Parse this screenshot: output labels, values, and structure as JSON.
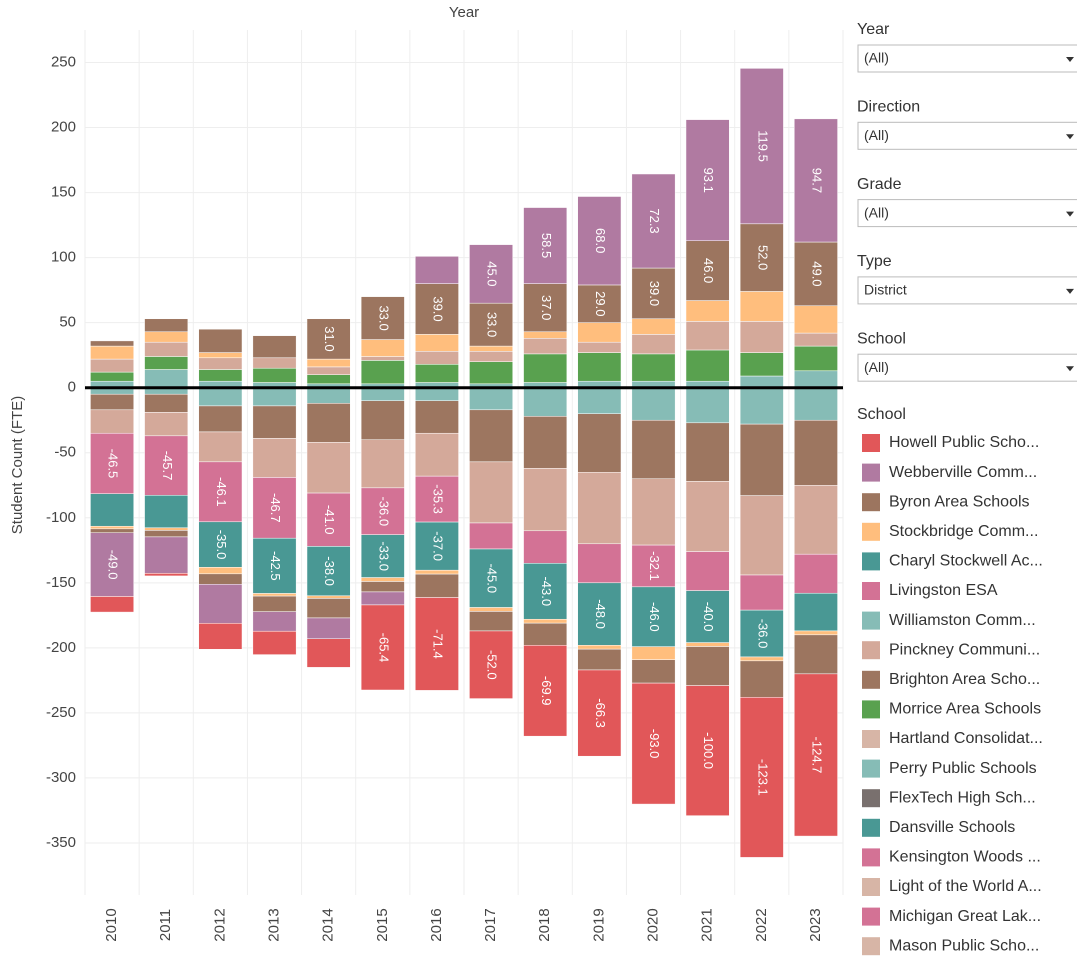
{
  "chart_data": {
    "type": "stacked_bar",
    "x_label": "Year",
    "y_label": "Student Count (FTE)",
    "categories": [
      "2010",
      "2011",
      "2012",
      "2013",
      "2014",
      "2015",
      "2016",
      "2017",
      "2018",
      "2019",
      "2020",
      "2021",
      "2022",
      "2023"
    ],
    "ylim": [
      -390,
      275
    ],
    "yticks": [
      -350,
      -300,
      -250,
      -200,
      -150,
      -100,
      -50,
      0,
      50,
      100,
      150,
      200,
      250
    ],
    "grid": true,
    "legend_title": "School",
    "series": [
      {
        "name": "Howell Public Scho...",
        "color": "#e15759",
        "values_out": [
          -12,
          -2,
          -20,
          -18,
          -22,
          -65.4,
          -71.4,
          -52,
          -69.9,
          -66.3,
          -93,
          -100,
          -123.1,
          -124.7
        ],
        "value_labels_out": [
          null,
          null,
          null,
          null,
          null,
          "-65.4",
          "-71.4",
          "-52.0",
          "-69.9",
          "-66.3",
          "-93.0",
          "-100.0",
          "-123.1",
          "-124.7"
        ]
      },
      {
        "name": "Webberville Comm...",
        "color": "#b07aa1",
        "values": [
          null,
          null,
          null,
          null,
          null,
          null,
          21,
          45,
          58.5,
          68,
          72.3,
          93.1,
          119.5,
          94.7
        ],
        "value_labels": [
          null,
          null,
          null,
          null,
          null,
          null,
          null,
          "45.0",
          "58.5",
          "68.0",
          "72.3",
          "93.1",
          "119.5",
          "94.7"
        ],
        "values_out": [
          -49,
          -28,
          -30,
          -15,
          -16,
          -10,
          null,
          null,
          null,
          null,
          null,
          null,
          null,
          null
        ],
        "value_labels_out": [
          "-49.0",
          null,
          null,
          null,
          null,
          null,
          null,
          null,
          null,
          null,
          null,
          null,
          null,
          null
        ]
      },
      {
        "name": "Byron Area Schools",
        "color": "#9c755f",
        "values": [
          4,
          10,
          18,
          17,
          31,
          33,
          39,
          33,
          37,
          29,
          39,
          46,
          52,
          49
        ],
        "value_labels": [
          null,
          null,
          null,
          null,
          "31.0",
          "33.0",
          "39.0",
          "33.0",
          "37.0",
          "29.0",
          "39.0",
          "46.0",
          "52.0",
          "49.0"
        ],
        "values_out": [
          -3,
          -5,
          -8,
          -12,
          -15,
          -8,
          -18,
          -15,
          -17,
          -16,
          -18,
          -30,
          -28,
          -30
        ]
      },
      {
        "name": "Stockbridge Comm...",
        "color": "#ffbe7d",
        "values": [
          10,
          8,
          4,
          null,
          6,
          13,
          13,
          4,
          5,
          15,
          12,
          16,
          23,
          21
        ],
        "values_out": [
          -2,
          -2,
          -5,
          -2,
          -2,
          -3,
          -3,
          -3,
          -3,
          -3,
          -10,
          -3,
          -3,
          -3
        ]
      },
      {
        "name": "Charyl Stockwell Ac...",
        "color": "#499894",
        "values_out": [
          -25,
          -25,
          -35,
          -42.5,
          -38,
          -33,
          -37,
          -45,
          -43,
          -48,
          -46,
          -40,
          -36,
          -29
        ],
        "value_labels_out": [
          null,
          null,
          "-35.0",
          "-42.5",
          "-38.0",
          "-33.0",
          "-37.0",
          "-45.0",
          "-43.0",
          "-48.0",
          "-46.0",
          "-40.0",
          "-36.0",
          null
        ]
      },
      {
        "name": "Livingston ESA",
        "color": "#d37295",
        "values_out": [
          -46.5,
          -45.7,
          -46.1,
          -46.7,
          -41,
          -36,
          -35.3,
          -20,
          -25,
          -30,
          -32.1,
          -30,
          -27,
          -30
        ],
        "value_labels_out": [
          "-46.5",
          "-45.7",
          "-46.1",
          "-46.7",
          "-41.0",
          "-36.0",
          "-35.3",
          null,
          null,
          null,
          "-32.1",
          null,
          null,
          null
        ]
      },
      {
        "name": "Williamston Comm...",
        "color": "#86bcb6"
      },
      {
        "name": "Pinckney Communi...",
        "color": "#d4a99a",
        "values": [
          10,
          11,
          9,
          8,
          6,
          3,
          10,
          8,
          12,
          8,
          15,
          22,
          24,
          10
        ],
        "values_out": [
          -18,
          -18,
          -23,
          -30,
          -39,
          -37,
          -33,
          -47,
          -48,
          -55,
          -51,
          -54,
          -61,
          -53
        ]
      },
      {
        "name": "Brighton Area Scho...",
        "color": "#9d7660",
        "values_out": [
          -12,
          -14,
          -20,
          -25,
          -30,
          -30,
          -25,
          -40,
          -40,
          -45,
          -45,
          -45,
          -55,
          -50
        ]
      },
      {
        "name": "Morrice Area Schools",
        "color": "#59a14f",
        "values": [
          7,
          10,
          9,
          11,
          7,
          18,
          14,
          17,
          22,
          22,
          21,
          24,
          18,
          19
        ]
      },
      {
        "name": "Hartland Consolidat...",
        "color": "#d7b5a6"
      },
      {
        "name": "Perry Public Schools",
        "color": "#86bcb6",
        "values": [
          5,
          14,
          5,
          4,
          3,
          3,
          4,
          3,
          4,
          5,
          5,
          5,
          9,
          13
        ],
        "values_out": [
          -5,
          -5,
          -14,
          -14,
          -12,
          -10,
          -10,
          -17,
          -22,
          -20,
          -25,
          -27,
          -28,
          -25
        ]
      },
      {
        "name": "FlexTech High Sch...",
        "color": "#79706e"
      },
      {
        "name": "Dansville Schools",
        "color": "#499894"
      },
      {
        "name": "Kensington Woods ...",
        "color": "#d37295"
      },
      {
        "name": "Light of the World A...",
        "color": "#d7b5a6"
      },
      {
        "name": "Michigan Great Lak...",
        "color": "#d37295"
      },
      {
        "name": "Mason Public Scho...",
        "color": "#d7b5a6"
      }
    ]
  },
  "filters": [
    {
      "label": "Year",
      "value": "(All)"
    },
    {
      "label": "Direction",
      "value": "(All)"
    },
    {
      "label": "Grade",
      "value": "(All)"
    },
    {
      "label": "Type",
      "value": "District"
    },
    {
      "label": "School",
      "value": "(All)"
    }
  ]
}
